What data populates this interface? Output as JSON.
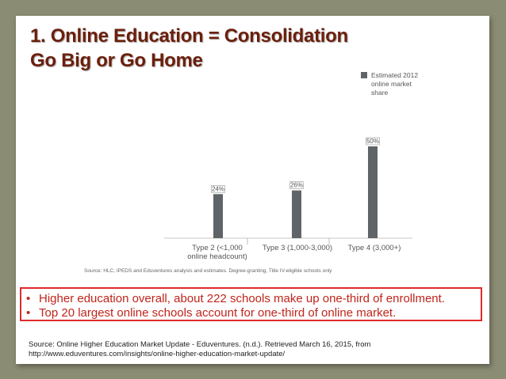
{
  "slide": {
    "title_line1": "1. Online Education = Consolidation",
    "title_line2": "Go Big or Go Home",
    "bullets": [
      "Higher education overall, about 222 schools make up one-third of enrollment.",
      "Top 20 largest online schools account for one-third of online market."
    ],
    "source_line1": "Source: Online Higher Education Market Update - Eduventures. (n.d.). Retrieved March 16, 2015, from",
    "source_line2": "http://www.eduventures.com/insights/online-higher-education-market-update/",
    "colors": {
      "background": "#8b8c74",
      "title": "#6b1f0c",
      "bar": "#5f6468",
      "bullet_border": "#e02a2a",
      "bullet_text": "#c0241b"
    }
  },
  "chart_data": {
    "type": "bar",
    "categories": [
      "Type 2 (<1,000 online headcount)",
      "Type 3 (1,000-3,000)",
      "Type 4 (3,000+)"
    ],
    "category_lines": [
      [
        "Type 2 (<1,000",
        "online headcount)"
      ],
      [
        "Type 3 (1,000-3,000)"
      ],
      [
        "Type 4 (3,000+)"
      ]
    ],
    "series": [
      {
        "name": "Estimated 2012 online market share",
        "values": [
          24,
          26,
          50
        ],
        "value_labels": [
          "24%",
          "26%",
          "50%"
        ]
      }
    ],
    "legend_lines": [
      "Estimated 2012",
      "online market",
      "share"
    ],
    "legend_position": "top-right",
    "ylim": [
      0,
      60
    ],
    "grid": false,
    "xlabel": "",
    "ylabel": "",
    "note": "Source: HLC, IPEDS and Eduventures analysis and estimates. Degree-granting, Title IV-eligible schools only"
  }
}
